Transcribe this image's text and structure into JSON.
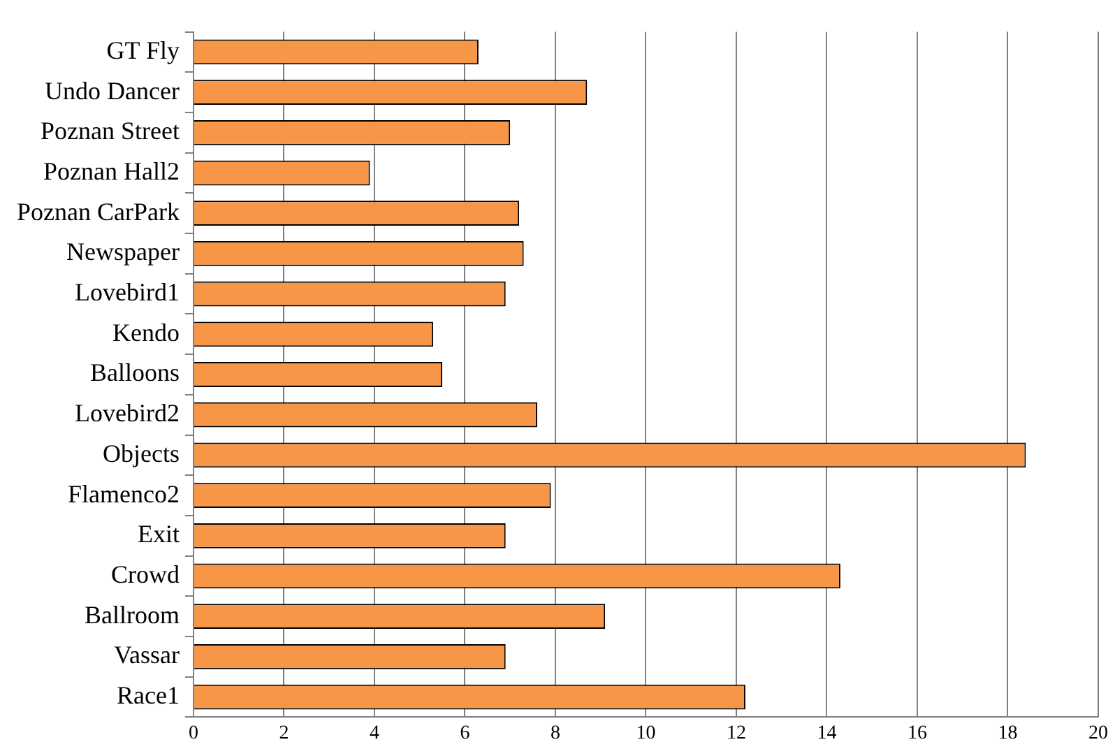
{
  "chart_data": {
    "type": "bar",
    "orientation": "horizontal",
    "categories": [
      "GT Fly",
      "Undo Dancer",
      "Poznan Street",
      "Poznan Hall2",
      "Poznan CarPark",
      "Newspaper",
      "Lovebird1",
      "Kendo",
      "Balloons",
      "Lovebird2",
      "Objects",
      "Flamenco2",
      "Exit",
      "Crowd",
      "Ballroom",
      "Vassar",
      "Race1"
    ],
    "values": [
      6.3,
      8.7,
      7.0,
      3.9,
      7.2,
      7.3,
      6.9,
      5.3,
      5.5,
      7.6,
      18.4,
      7.9,
      6.9,
      14.3,
      9.1,
      6.9,
      12.2
    ],
    "color": "#f79646",
    "xlim": [
      0,
      20
    ],
    "xticks": [
      0,
      2,
      4,
      6,
      8,
      10,
      12,
      14,
      16,
      18,
      20
    ],
    "grid": "x",
    "legend": false
  }
}
